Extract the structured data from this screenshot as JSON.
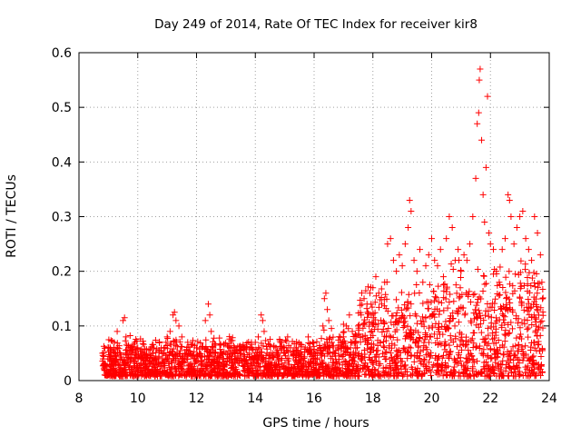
{
  "chart_data": {
    "type": "scatter",
    "title": "Day 249 of 2014, Rate Of TEC Index for receiver kir8",
    "xlabel": "GPS time / hours",
    "ylabel": "ROTI / TECUs",
    "xlim": [
      8,
      24
    ],
    "ylim": [
      0,
      0.6
    ],
    "xticks": [
      8,
      10,
      12,
      14,
      16,
      18,
      20,
      22,
      24
    ],
    "yticks": [
      0,
      0.1,
      0.2,
      0.3,
      0.4,
      0.5,
      0.6
    ],
    "xtick_labels": [
      "8",
      "10",
      "12",
      "14",
      "16",
      "18",
      "20",
      "22",
      "24"
    ],
    "ytick_labels": [
      "0",
      "0.1",
      "0.2",
      "0.3",
      "0.4",
      "0.5",
      "0.6"
    ],
    "grid": true,
    "marker": "+",
    "color": "#ff0000",
    "series": [
      {
        "name": "ROTI",
        "points": [
          [
            8.8,
            0.05
          ],
          [
            8.9,
            0.03
          ],
          [
            9.0,
            0.06
          ],
          [
            9.1,
            0.04
          ],
          [
            9.2,
            0.07
          ],
          [
            9.3,
            0.09
          ],
          [
            9.4,
            0.05
          ],
          [
            9.5,
            0.11
          ],
          [
            9.55,
            0.115
          ],
          [
            9.6,
            0.08
          ],
          [
            9.7,
            0.04
          ],
          [
            9.8,
            0.05
          ],
          [
            9.9,
            0.07
          ],
          [
            10.0,
            0.06
          ],
          [
            10.1,
            0.03
          ],
          [
            10.2,
            0.05
          ],
          [
            10.3,
            0.04
          ],
          [
            10.4,
            0.03
          ],
          [
            10.5,
            0.05
          ],
          [
            10.6,
            0.04
          ],
          [
            10.7,
            0.03
          ],
          [
            10.8,
            0.06
          ],
          [
            10.9,
            0.05
          ],
          [
            11.0,
            0.08
          ],
          [
            11.1,
            0.09
          ],
          [
            11.2,
            0.12
          ],
          [
            11.25,
            0.125
          ],
          [
            11.3,
            0.11
          ],
          [
            11.4,
            0.1
          ],
          [
            11.5,
            0.08
          ],
          [
            11.6,
            0.05
          ],
          [
            11.7,
            0.07
          ],
          [
            11.8,
            0.05
          ],
          [
            11.9,
            0.04
          ],
          [
            12.0,
            0.06
          ],
          [
            12.1,
            0.05
          ],
          [
            12.2,
            0.06
          ],
          [
            12.3,
            0.11
          ],
          [
            12.4,
            0.14
          ],
          [
            12.45,
            0.12
          ],
          [
            12.5,
            0.09
          ],
          [
            12.6,
            0.05
          ],
          [
            12.7,
            0.04
          ],
          [
            12.8,
            0.05
          ],
          [
            12.9,
            0.04
          ],
          [
            13.0,
            0.05
          ],
          [
            13.1,
            0.04
          ],
          [
            13.2,
            0.06
          ],
          [
            13.3,
            0.05
          ],
          [
            13.4,
            0.04
          ],
          [
            13.5,
            0.05
          ],
          [
            13.6,
            0.04
          ],
          [
            13.7,
            0.06
          ],
          [
            13.8,
            0.05
          ],
          [
            13.9,
            0.04
          ],
          [
            14.0,
            0.07
          ],
          [
            14.1,
            0.08
          ],
          [
            14.2,
            0.12
          ],
          [
            14.25,
            0.11
          ],
          [
            14.3,
            0.09
          ],
          [
            14.4,
            0.05
          ],
          [
            14.5,
            0.04
          ],
          [
            14.6,
            0.05
          ],
          [
            14.7,
            0.06
          ],
          [
            14.8,
            0.04
          ],
          [
            14.9,
            0.07
          ],
          [
            15.0,
            0.05
          ],
          [
            15.1,
            0.08
          ],
          [
            15.2,
            0.06
          ],
          [
            15.3,
            0.05
          ],
          [
            15.4,
            0.06
          ],
          [
            15.5,
            0.05
          ],
          [
            15.6,
            0.04
          ],
          [
            15.7,
            0.06
          ],
          [
            15.8,
            0.08
          ],
          [
            15.9,
            0.05
          ],
          [
            16.0,
            0.04
          ],
          [
            16.1,
            0.05
          ],
          [
            16.2,
            0.06
          ],
          [
            16.3,
            0.1
          ],
          [
            16.35,
            0.15
          ],
          [
            16.4,
            0.16
          ],
          [
            16.45,
            0.13
          ],
          [
            16.5,
            0.11
          ],
          [
            16.6,
            0.07
          ],
          [
            16.7,
            0.05
          ],
          [
            16.8,
            0.06
          ],
          [
            16.9,
            0.07
          ],
          [
            17.0,
            0.08
          ],
          [
            17.1,
            0.1
          ],
          [
            17.2,
            0.12
          ],
          [
            17.3,
            0.09
          ],
          [
            17.4,
            0.07
          ],
          [
            17.5,
            0.1
          ],
          [
            17.6,
            0.12
          ],
          [
            17.7,
            0.15
          ],
          [
            17.8,
            0.14
          ],
          [
            17.9,
            0.16
          ],
          [
            18.0,
            0.17
          ],
          [
            18.1,
            0.19
          ],
          [
            18.2,
            0.16
          ],
          [
            18.3,
            0.14
          ],
          [
            18.4,
            0.18
          ],
          [
            18.5,
            0.25
          ],
          [
            18.6,
            0.26
          ],
          [
            18.7,
            0.22
          ],
          [
            18.8,
            0.2
          ],
          [
            18.9,
            0.23
          ],
          [
            19.0,
            0.21
          ],
          [
            19.1,
            0.25
          ],
          [
            19.2,
            0.28
          ],
          [
            19.25,
            0.33
          ],
          [
            19.3,
            0.31
          ],
          [
            19.4,
            0.22
          ],
          [
            19.5,
            0.2
          ],
          [
            19.6,
            0.24
          ],
          [
            19.7,
            0.18
          ],
          [
            19.8,
            0.21
          ],
          [
            19.9,
            0.23
          ],
          [
            20.0,
            0.26
          ],
          [
            20.1,
            0.22
          ],
          [
            20.2,
            0.21
          ],
          [
            20.3,
            0.24
          ],
          [
            20.4,
            0.19
          ],
          [
            20.5,
            0.26
          ],
          [
            20.6,
            0.3
          ],
          [
            20.7,
            0.28
          ],
          [
            20.8,
            0.22
          ],
          [
            20.9,
            0.24
          ],
          [
            21.0,
            0.2
          ],
          [
            21.1,
            0.23
          ],
          [
            21.2,
            0.22
          ],
          [
            21.3,
            0.25
          ],
          [
            21.4,
            0.3
          ],
          [
            21.5,
            0.37
          ],
          [
            21.55,
            0.47
          ],
          [
            21.6,
            0.49
          ],
          [
            21.62,
            0.55
          ],
          [
            21.65,
            0.57
          ],
          [
            21.7,
            0.44
          ],
          [
            21.75,
            0.34
          ],
          [
            21.8,
            0.29
          ],
          [
            21.85,
            0.39
          ],
          [
            21.9,
            0.52
          ],
          [
            21.95,
            0.27
          ],
          [
            22.0,
            0.25
          ],
          [
            22.1,
            0.24
          ],
          [
            22.2,
            0.2
          ],
          [
            22.3,
            0.18
          ],
          [
            22.4,
            0.24
          ],
          [
            22.5,
            0.26
          ],
          [
            22.6,
            0.34
          ],
          [
            22.65,
            0.33
          ],
          [
            22.7,
            0.3
          ],
          [
            22.8,
            0.25
          ],
          [
            22.9,
            0.28
          ],
          [
            23.0,
            0.3
          ],
          [
            23.1,
            0.31
          ],
          [
            23.2,
            0.26
          ],
          [
            23.3,
            0.24
          ],
          [
            23.4,
            0.22
          ],
          [
            23.5,
            0.3
          ],
          [
            23.6,
            0.27
          ],
          [
            23.7,
            0.23
          ],
          [
            23.75,
            0.18
          ]
        ]
      }
    ]
  }
}
